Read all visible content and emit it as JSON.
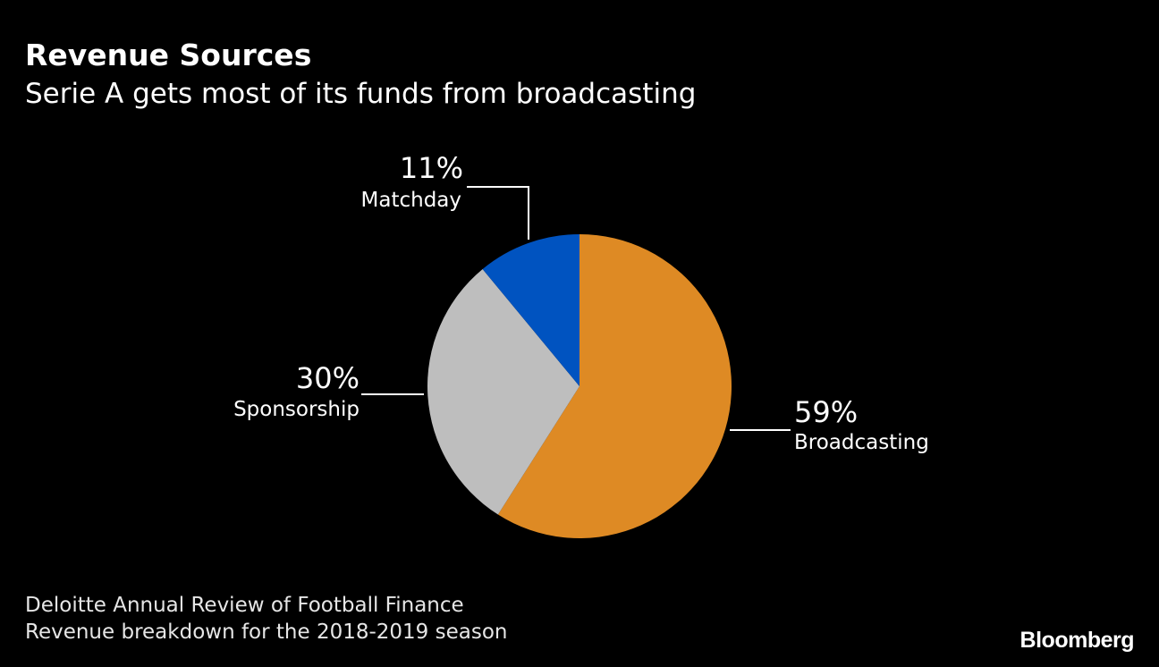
{
  "header": {
    "title": "Revenue Sources",
    "subtitle": "Serie A gets most of its funds from broadcasting"
  },
  "chart_data": {
    "type": "pie",
    "title": "Revenue Sources",
    "subtitle": "Serie A gets most of its funds from broadcasting",
    "start": "12 o'clock",
    "direction": "clockwise",
    "slices": [
      {
        "label": "Broadcasting",
        "value": 59,
        "value_label": "59%",
        "color": "#DE8A24"
      },
      {
        "label": "Sponsorship",
        "value": 30,
        "value_label": "30%",
        "color": "#BEBEBE"
      },
      {
        "label": "Matchday",
        "value": 11,
        "value_label": "11%",
        "color": "#0053C0"
      }
    ]
  },
  "footer": {
    "source_line1": "Deloitte Annual Review of Football Finance",
    "source_line2": "Revenue breakdown for the 2018-2019 season",
    "brand": "Bloomberg"
  },
  "colors": {
    "background": "#000000",
    "text": "#FFFFFF",
    "leader_line": "#FFFFFF"
  }
}
